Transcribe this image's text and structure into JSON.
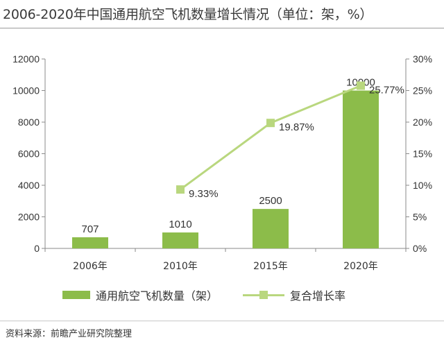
{
  "title": "2006-2020年中国通用航空飞机数量增长情况（单位：架，%）",
  "source": "资料来源：前瞻产业研究院整理",
  "chart_data": {
    "type": "bar",
    "categories": [
      "2006年",
      "2010年",
      "2015年",
      "2020年"
    ],
    "series": [
      {
        "name": "通用航空飞机数量（架）",
        "type": "bar",
        "axis": "left",
        "values": [
          707,
          1010,
          2500,
          10000
        ],
        "labels": [
          "707",
          "1010",
          "2500",
          "10000"
        ],
        "color": "#8cbc4a"
      },
      {
        "name": "复合增长率",
        "type": "line",
        "axis": "right",
        "values": [
          null,
          9.33,
          19.87,
          25.77
        ],
        "labels": [
          "",
          "9.33%",
          "19.87%",
          "25.77%"
        ],
        "color": "#b9d77e"
      }
    ],
    "y_left": {
      "ylim": [
        0,
        12000
      ],
      "ticks": [
        "0",
        "2000",
        "4000",
        "6000",
        "8000",
        "10000",
        "12000"
      ]
    },
    "y_right": {
      "ylim": [
        0,
        30
      ],
      "ticks": [
        "0%",
        "5%",
        "10%",
        "15%",
        "20%",
        "25%",
        "30%"
      ]
    },
    "grid": false,
    "legend": "bottom"
  }
}
